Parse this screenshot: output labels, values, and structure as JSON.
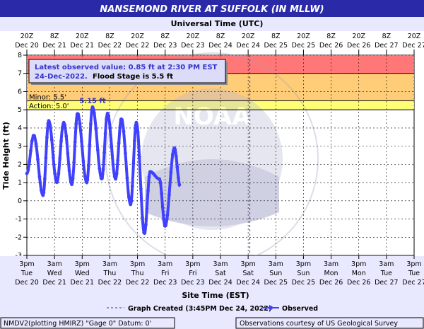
{
  "chart_data": {
    "type": "line",
    "title": "NANSEMOND RIVER AT SUFFOLK (IN MLLW)",
    "top_axis_title": "Universal Time (UTC)",
    "bottom_axis_title": "Site Time (EST)",
    "ylabel": "Tide Height (ft)",
    "ylim": [
      -3,
      8
    ],
    "yticks": [
      "-3",
      "-2",
      "-1",
      "0",
      "1",
      "2",
      "3",
      "4",
      "5",
      "6",
      "7",
      "8"
    ],
    "grid": true,
    "top_ticks": [
      [
        "20Z",
        "Dec 20"
      ],
      [
        "8Z",
        "Dec 21"
      ],
      [
        "20Z",
        "Dec 21"
      ],
      [
        "8Z",
        "Dec 22"
      ],
      [
        "20Z",
        "Dec 22"
      ],
      [
        "8Z",
        "Dec 23"
      ],
      [
        "20Z",
        "Dec 23"
      ],
      [
        "8Z",
        "Dec 24"
      ],
      [
        "20Z",
        "Dec 24"
      ],
      [
        "8Z",
        "Dec 25"
      ],
      [
        "20Z",
        "Dec 25"
      ],
      [
        "8Z",
        "Dec 26"
      ],
      [
        "20Z",
        "Dec 26"
      ],
      [
        "8Z",
        "Dec 27"
      ],
      [
        "20Z",
        "Dec 27"
      ]
    ],
    "bottom_ticks": [
      [
        "3pm",
        "Tue",
        "Dec 20"
      ],
      [
        "3am",
        "Wed",
        "Dec 21"
      ],
      [
        "3pm",
        "Wed",
        "Dec 21"
      ],
      [
        "3am",
        "Thu",
        "Dec 22"
      ],
      [
        "3pm",
        "Thu",
        "Dec 22"
      ],
      [
        "3am",
        "Fri",
        "Dec 23"
      ],
      [
        "3pm",
        "Fri",
        "Dec 23"
      ],
      [
        "3am",
        "Sat",
        "Dec 24"
      ],
      [
        "3pm",
        "Sat",
        "Dec 24"
      ],
      [
        "3am",
        "Sun",
        "Dec 25"
      ],
      [
        "3pm",
        "Sun",
        "Dec 25"
      ],
      [
        "3am",
        "Mon",
        "Dec 26"
      ],
      [
        "3pm",
        "Mon",
        "Dec 26"
      ],
      [
        "3am",
        "Tue",
        "Dec 27"
      ],
      [
        "3pm",
        "Tue",
        "Dec 27"
      ]
    ],
    "x_hours_since_first_tick": [
      0,
      3,
      7,
      9.5,
      13,
      16,
      19.5,
      22,
      26,
      28.5,
      32.5,
      35,
      38.5,
      41,
      45,
      47.5,
      51,
      53.5,
      57.5,
      60,
      64,
      66.5,
      70,
      72,
      74.5,
      77,
      79.5,
      81,
      84,
      86,
      88.5,
      90,
      92
    ],
    "series": [
      {
        "name": "Observed",
        "color": "#4040ff",
        "values": [
          1.5,
          3.6,
          0.3,
          4.4,
          1.0,
          4.3,
          0.9,
          4.8,
          1.0,
          5.15,
          1.2,
          4.8,
          1.2,
          4.5,
          -0.2,
          4.3,
          -1.8,
          1.6,
          1.2,
          -1.4,
          2.9,
          0.8,
          null,
          null,
          null,
          null,
          null,
          null,
          null,
          null,
          null,
          null,
          null
        ]
      }
    ],
    "thresholds": [
      {
        "label": "Minor:  5.5'",
        "value": 5.5,
        "color": "#ffcc66"
      },
      {
        "label": "Action:  5.0'",
        "value": 5.0,
        "color": "#ffff66"
      }
    ],
    "bands": [
      {
        "from": 7.0,
        "to": 8.0,
        "color": "#ff7777"
      },
      {
        "from": 5.5,
        "to": 7.0,
        "color": "#ffcc77"
      },
      {
        "from": 5.0,
        "to": 5.5,
        "color": "#ffff77"
      }
    ],
    "peak_label": "5.15 ft",
    "annotation": {
      "line1": "Latest observed value: 0.85 ft at 2:30 PM EST",
      "line2_date": "24-Dec-2022.",
      "line2_rest": "Flood Stage is 5.5 ft"
    },
    "legend": {
      "graph_created": "Graph Created (3:45PM Dec 24, 2022)",
      "observed": "Observed"
    },
    "footer_left": "NMDV2(plotting HMIRZ) \"Gage 0\" Datum:  0'",
    "footer_right": "Observations courtesy of US Geological Survey",
    "watermark": [
      "NATIONAL OCEANIC AND ATMOSPHERIC ADMINISTRATION",
      "NOAA",
      "U.S. DEPARTMENT OF COMMERCE"
    ]
  }
}
